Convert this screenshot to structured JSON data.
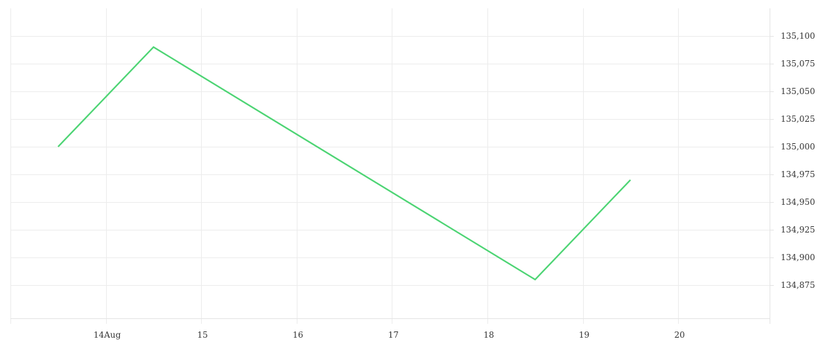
{
  "chart_data": {
    "type": "line",
    "title": "",
    "xlabel": "",
    "ylabel": "",
    "x_ticks": [
      {
        "date": "2024-08-14",
        "label": "14Aug"
      },
      {
        "date": "2024-08-15",
        "label": "15"
      },
      {
        "date": "2024-08-16",
        "label": "16"
      },
      {
        "date": "2024-08-17",
        "label": "17"
      },
      {
        "date": "2024-08-18",
        "label": "18"
      },
      {
        "date": "2024-08-19",
        "label": "19"
      },
      {
        "date": "2024-08-20",
        "label": "20"
      }
    ],
    "y_ticks": [
      {
        "value": 134875,
        "label": "134,875"
      },
      {
        "value": 134900,
        "label": "134,900"
      },
      {
        "value": 134925,
        "label": "134,925"
      },
      {
        "value": 134950,
        "label": "134,950"
      },
      {
        "value": 134975,
        "label": "134,975"
      },
      {
        "value": 135000,
        "label": "135,000"
      },
      {
        "value": 135025,
        "label": "135,025"
      },
      {
        "value": 135050,
        "label": "135,050"
      },
      {
        "value": 135075,
        "label": "135,075"
      },
      {
        "value": 135100,
        "label": "135,100"
      }
    ],
    "xlim": [
      "2024-08-13T00:00",
      "2024-08-20T23:00"
    ],
    "ylim": [
      134845,
      135125
    ],
    "grid": true,
    "y_axis_position": "right",
    "series": [
      {
        "color": "#4cd473",
        "points": [
          {
            "x": "2024-08-13T12:00",
            "y": 135000
          },
          {
            "x": "2024-08-14T12:00",
            "y": 135090
          },
          {
            "x": "2024-08-18T12:00",
            "y": 134880
          },
          {
            "x": "2024-08-19T12:00",
            "y": 134970
          }
        ]
      }
    ],
    "colors": {
      "grid": "#ececec",
      "axis": "#e4e4e4",
      "tick_text": "#333333"
    }
  }
}
